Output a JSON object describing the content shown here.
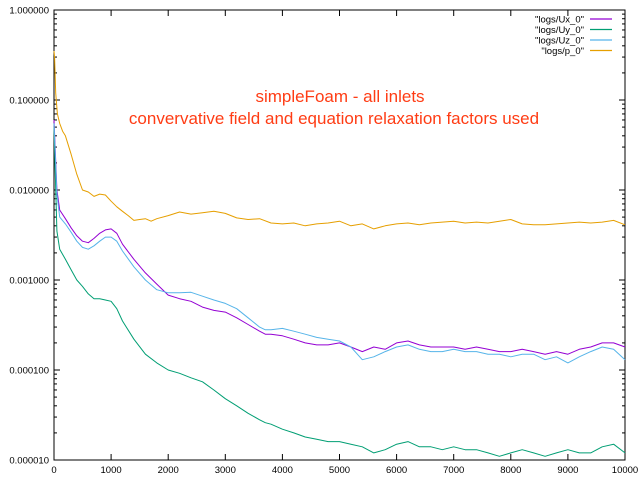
{
  "chart_data": {
    "type": "line",
    "title": "",
    "xlabel": "",
    "ylabel": "",
    "xlim": [
      0,
      10000
    ],
    "ylim": [
      1e-05,
      1
    ],
    "yscale": "log",
    "grid": false,
    "legend_position": "top-right",
    "x_ticks": [
      "0",
      "1000",
      "2000",
      "3000",
      "4000",
      "5000",
      "6000",
      "7000",
      "8000",
      "9000",
      "10000"
    ],
    "y_ticks": [
      "0.000010",
      "0.000100",
      "0.001000",
      "0.010000",
      "0.100000",
      "1.000000"
    ],
    "annotations": [
      "simpleFoam - all inlets",
      "convervative field and equation relaxation factors used"
    ],
    "annotation_color": "#ff3c14",
    "series": [
      {
        "name": "\"logs/Ux_0\"",
        "color": "#9400d3",
        "x": [
          0,
          50,
          100,
          200,
          300,
          400,
          500,
          600,
          700,
          800,
          900,
          1000,
          1100,
          1200,
          1400,
          1600,
          1800,
          2000,
          2200,
          2400,
          2600,
          2800,
          3000,
          3200,
          3400,
          3600,
          3700,
          3800,
          4000,
          4200,
          4400,
          4600,
          4800,
          5000,
          5200,
          5400,
          5600,
          5800,
          6000,
          6200,
          6400,
          6600,
          6800,
          7000,
          7200,
          7400,
          7600,
          7800,
          8000,
          8200,
          8400,
          8600,
          8800,
          9000,
          9200,
          9400,
          9600,
          9800,
          10000
        ],
        "values": [
          0.06,
          0.01,
          0.006,
          0.0048,
          0.0038,
          0.0031,
          0.0027,
          0.0026,
          0.0029,
          0.0033,
          0.0036,
          0.0037,
          0.0033,
          0.0025,
          0.0017,
          0.0012,
          0.0009,
          0.00068,
          0.00062,
          0.00058,
          0.0005,
          0.00046,
          0.00044,
          0.00038,
          0.00032,
          0.00027,
          0.00025,
          0.00025,
          0.00024,
          0.00022,
          0.0002,
          0.00019,
          0.00019,
          0.0002,
          0.00018,
          0.00016,
          0.00018,
          0.00017,
          0.0002,
          0.00021,
          0.00019,
          0.00018,
          0.00018,
          0.00018,
          0.00017,
          0.00018,
          0.00017,
          0.00016,
          0.00016,
          0.00017,
          0.00016,
          0.00015,
          0.00016,
          0.00015,
          0.00017,
          0.00018,
          0.0002,
          0.0002,
          0.00018
        ]
      },
      {
        "name": "\"logs/Uy_0\"",
        "color": "#009e73",
        "x": [
          0,
          50,
          100,
          200,
          300,
          400,
          500,
          600,
          700,
          800,
          900,
          1000,
          1100,
          1200,
          1400,
          1600,
          1800,
          2000,
          2200,
          2400,
          2600,
          2800,
          3000,
          3200,
          3400,
          3600,
          3700,
          3800,
          4000,
          4200,
          4400,
          4600,
          4800,
          5000,
          5200,
          5400,
          5600,
          5800,
          6000,
          6200,
          6400,
          6600,
          6800,
          7000,
          7200,
          7400,
          7600,
          7800,
          8000,
          8200,
          8400,
          8600,
          8800,
          9000,
          9200,
          9400,
          9600,
          9800,
          10000
        ],
        "values": [
          0.05,
          0.0035,
          0.0022,
          0.0017,
          0.0013,
          0.001,
          0.00085,
          0.0007,
          0.00062,
          0.00062,
          0.0006,
          0.00058,
          0.00048,
          0.00035,
          0.00022,
          0.00015,
          0.00012,
          0.0001,
          9.2e-05,
          8.2e-05,
          7.4e-05,
          6e-05,
          4.8e-05,
          4e-05,
          3.3e-05,
          2.8e-05,
          2.6e-05,
          2.5e-05,
          2.2e-05,
          2e-05,
          1.8e-05,
          1.7e-05,
          1.6e-05,
          1.6e-05,
          1.5e-05,
          1.4e-05,
          1.2e-05,
          1.3e-05,
          1.5e-05,
          1.6e-05,
          1.4e-05,
          1.4e-05,
          1.3e-05,
          1.4e-05,
          1.3e-05,
          1.3e-05,
          1.2e-05,
          1.1e-05,
          1.2e-05,
          1.3e-05,
          1.2e-05,
          1.1e-05,
          1.2e-05,
          1.3e-05,
          1.2e-05,
          1.2e-05,
          1.4e-05,
          1.5e-05,
          1.2e-05
        ]
      },
      {
        "name": "\"logs/Uz_0\"",
        "color": "#56b4e9",
        "x": [
          0,
          50,
          100,
          200,
          300,
          400,
          500,
          600,
          700,
          800,
          900,
          1000,
          1100,
          1200,
          1400,
          1600,
          1800,
          2000,
          2200,
          2400,
          2600,
          2800,
          3000,
          3200,
          3400,
          3600,
          3700,
          3800,
          4000,
          4200,
          4400,
          4600,
          4800,
          5000,
          5200,
          5400,
          5600,
          5800,
          6000,
          6200,
          6400,
          6600,
          6800,
          7000,
          7200,
          7400,
          7600,
          7800,
          8000,
          8200,
          8400,
          8600,
          8800,
          9000,
          9200,
          9400,
          9600,
          9800,
          10000
        ],
        "values": [
          0.055,
          0.009,
          0.005,
          0.0042,
          0.0034,
          0.0027,
          0.0023,
          0.0022,
          0.0024,
          0.0027,
          0.003,
          0.003,
          0.0027,
          0.0021,
          0.0014,
          0.001,
          0.00078,
          0.00072,
          0.00072,
          0.00073,
          0.00066,
          0.0006,
          0.00055,
          0.00048,
          0.00038,
          0.0003,
          0.00028,
          0.00028,
          0.00029,
          0.00027,
          0.00025,
          0.00023,
          0.00022,
          0.00021,
          0.00018,
          0.00013,
          0.00014,
          0.00016,
          0.00018,
          0.00019,
          0.00017,
          0.00016,
          0.00016,
          0.00017,
          0.00016,
          0.00016,
          0.00015,
          0.00015,
          0.00014,
          0.00015,
          0.00015,
          0.00013,
          0.00014,
          0.00012,
          0.00014,
          0.00016,
          0.00018,
          0.00017,
          0.00013
        ]
      },
      {
        "name": "\"logs/p_0\"",
        "color": "#e69f00",
        "x": [
          0,
          10,
          30,
          60,
          100,
          150,
          200,
          300,
          400,
          500,
          600,
          700,
          800,
          900,
          1000,
          1100,
          1200,
          1300,
          1400,
          1500,
          1600,
          1700,
          1800,
          2000,
          2200,
          2400,
          2600,
          2800,
          3000,
          3200,
          3400,
          3600,
          3800,
          4000,
          4200,
          4400,
          4600,
          4800,
          5000,
          5200,
          5400,
          5600,
          5800,
          6000,
          6200,
          6400,
          6600,
          6800,
          7000,
          7200,
          7400,
          7600,
          7800,
          8000,
          8200,
          8400,
          8600,
          8800,
          9000,
          9200,
          9400,
          9600,
          9800,
          10000
        ],
        "values": [
          0.35,
          0.3,
          0.12,
          0.07,
          0.055,
          0.045,
          0.04,
          0.025,
          0.015,
          0.01,
          0.0095,
          0.0085,
          0.009,
          0.0088,
          0.0075,
          0.0065,
          0.0058,
          0.0052,
          0.0046,
          0.0047,
          0.0048,
          0.0045,
          0.0048,
          0.0052,
          0.0057,
          0.0054,
          0.0056,
          0.0058,
          0.0055,
          0.0049,
          0.0047,
          0.0048,
          0.0043,
          0.0042,
          0.0043,
          0.004,
          0.0042,
          0.0043,
          0.0045,
          0.004,
          0.0042,
          0.0037,
          0.004,
          0.0042,
          0.0043,
          0.0041,
          0.0043,
          0.0044,
          0.0045,
          0.0043,
          0.0044,
          0.0043,
          0.0045,
          0.0047,
          0.0042,
          0.0041,
          0.0041,
          0.0042,
          0.0043,
          0.0044,
          0.0043,
          0.0044,
          0.0046,
          0.0041
        ]
      }
    ]
  }
}
